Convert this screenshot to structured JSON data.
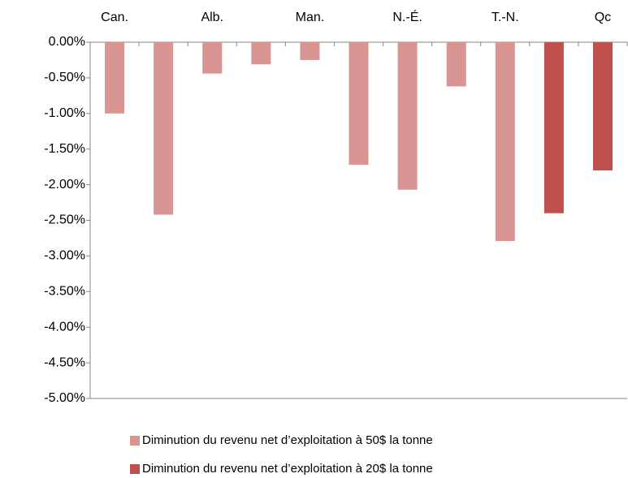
{
  "chart_data": {
    "type": "bar",
    "categories": [
      "Can.",
      null,
      "Alb.",
      null,
      "Man.",
      null,
      "N.-É.",
      null,
      "T.-N.",
      null,
      "Qc"
    ],
    "series": [
      {
        "name": "Diminution du revenu net d’exploitation à 50$ la tonne",
        "color": "#d99594",
        "values": [
          -1.0,
          -2.42,
          -0.44,
          -0.31,
          -0.25,
          -1.72,
          -2.07,
          -0.62,
          -2.79,
          null,
          null
        ]
      },
      {
        "name": "Diminution du revenu net d’exploitation à 20$ la tonne",
        "color": "#c0504d",
        "values": [
          null,
          null,
          null,
          null,
          null,
          null,
          null,
          null,
          null,
          -2.4,
          -1.8
        ]
      }
    ],
    "ylim": [
      -5,
      0
    ],
    "yticks": [
      {
        "value": 0,
        "label": "0.00%"
      },
      {
        "value": -0.5,
        "label": "-0.50%"
      },
      {
        "value": -1,
        "label": "-1.00%"
      },
      {
        "value": -1.5,
        "label": "-1.50%"
      },
      {
        "value": -2,
        "label": "-2.00%"
      },
      {
        "value": -2.5,
        "label": "-2.50%"
      },
      {
        "value": -3,
        "label": "-3.00%"
      },
      {
        "value": -3.5,
        "label": "-3.50%"
      },
      {
        "value": -4,
        "label": "-4.00%"
      },
      {
        "value": -4.5,
        "label": "-4.50%"
      },
      {
        "value": -5,
        "label": "-5.00%"
      }
    ],
    "grid": false
  }
}
